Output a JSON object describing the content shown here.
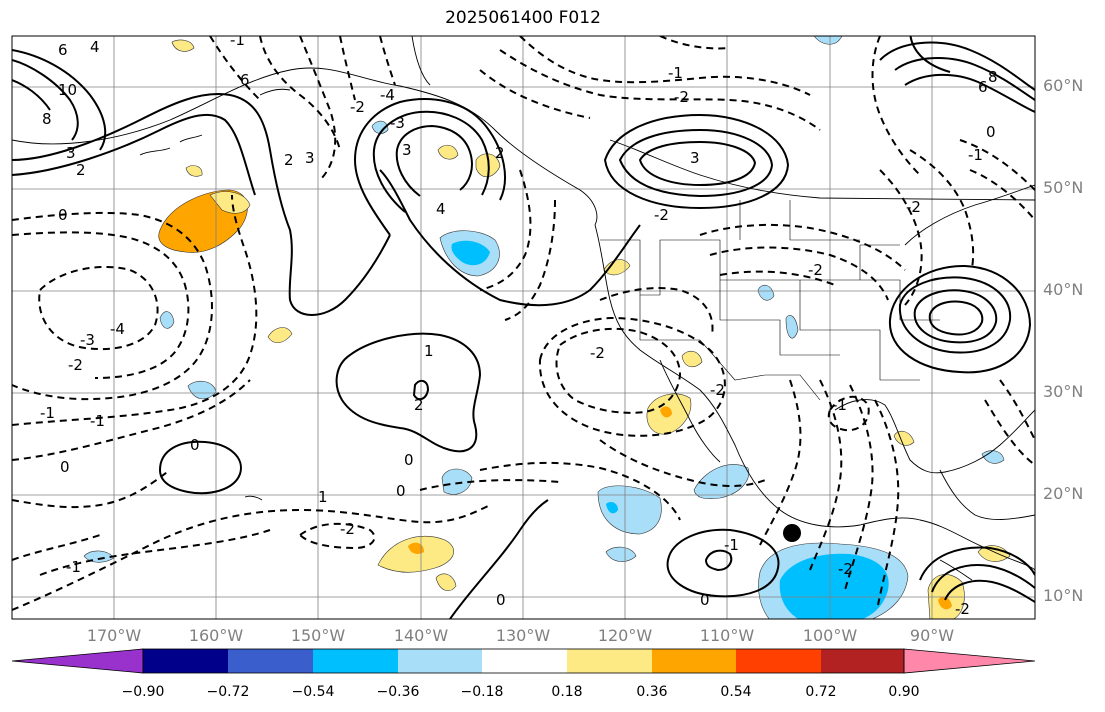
{
  "title": "2025061400 F012",
  "map": {
    "projection": "lat-lon",
    "lon_range_deg": [
      -180,
      -80
    ],
    "lat_range_deg": [
      8,
      65
    ],
    "gridlines": true,
    "contour_colors": "black",
    "negative_contours": "dashed",
    "marker": "black dot near 103.5°W, 16.5°N"
  },
  "latitude_labels": [
    "60°N",
    "50°N",
    "40°N",
    "30°N",
    "20°N",
    "10°N"
  ],
  "longitude_labels": [
    "170°W",
    "160°W",
    "150°W",
    "140°W",
    "130°W",
    "120°W",
    "110°W",
    "100°W",
    "90°W"
  ],
  "contour_labels": [
    "6",
    "4",
    "10",
    "8",
    "3",
    "2",
    "0",
    "-3",
    "-4",
    "-2",
    "-1",
    "0",
    "-1",
    "-1",
    "6",
    "3",
    "4",
    "2",
    "-2",
    "-3",
    "-4",
    "3",
    "2",
    "-2",
    "-2",
    "1",
    "2",
    "0",
    "-1",
    "0",
    "0",
    "-2",
    "1",
    "-2",
    "-1",
    "0",
    "-2",
    "0",
    "-1",
    "-2",
    "8",
    "6",
    "3",
    "0",
    "-1",
    "-2",
    "-1",
    "-2",
    "-2"
  ],
  "colorbar": {
    "ticks": [
      "−0.90",
      "−0.72",
      "−0.54",
      "−0.36",
      "−0.18",
      "0.18",
      "0.36",
      "0.54",
      "0.72",
      "0.90"
    ],
    "colors": [
      "#9932cc",
      "#00008b",
      "#3a5fcd",
      "#00bfff",
      "#a9def9",
      "#ffffff",
      "#fdea85",
      "#ffa500",
      "#ff4000",
      "#b22222",
      "#ff88aa"
    ]
  }
}
